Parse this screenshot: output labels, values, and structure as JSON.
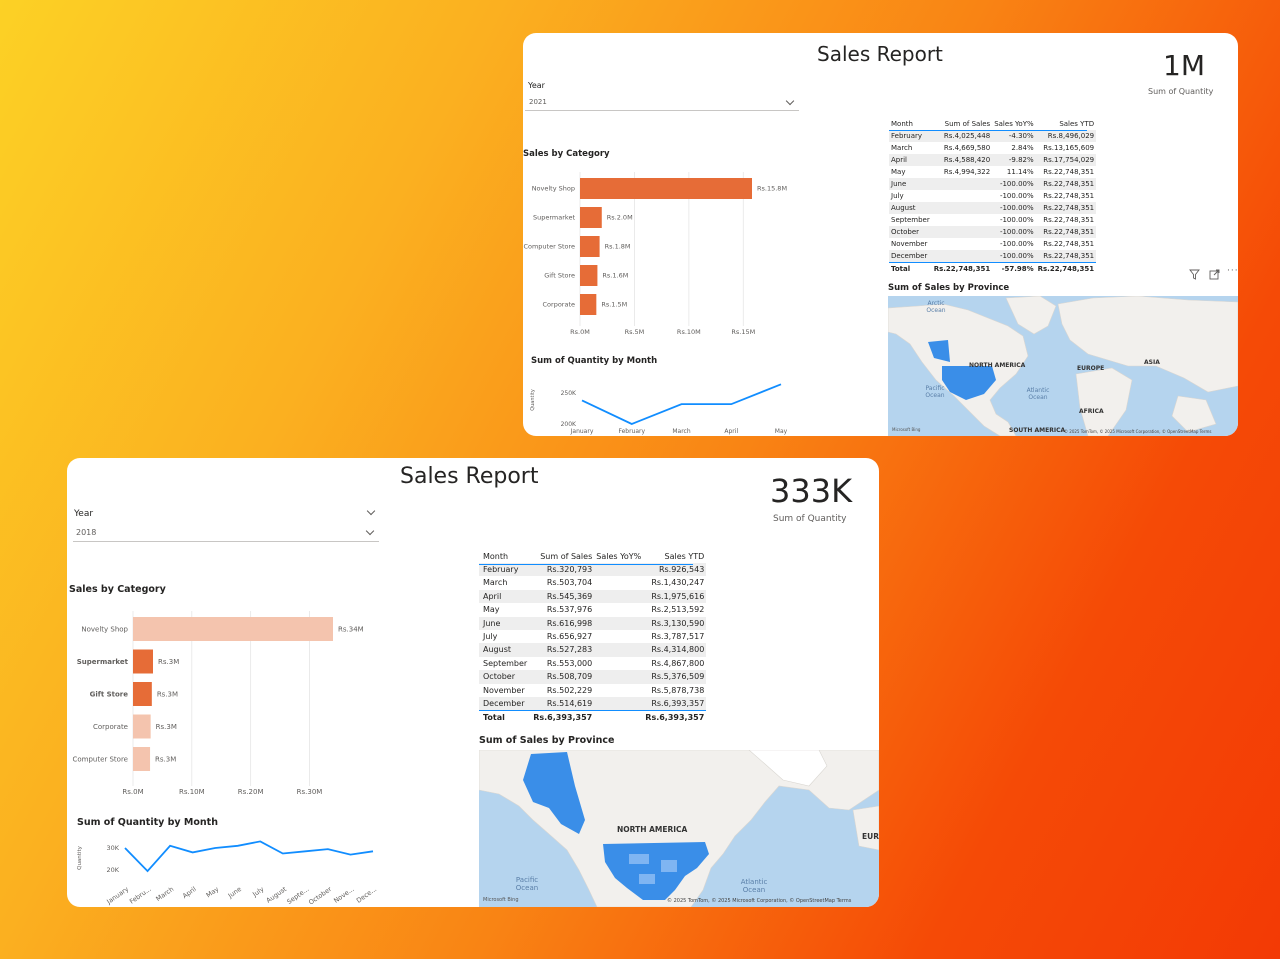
{
  "top_report": {
    "title": "Sales Report",
    "kpi": {
      "value": "1M",
      "label": "Sum of Quantity"
    },
    "year_slicer": {
      "label": "Year",
      "selected": "2021"
    },
    "sales_by_category": {
      "title": "Sales by Category",
      "categories": [
        "Novelty Shop",
        "Supermarket",
        "Computer Store",
        "Gift Store",
        "Corporate"
      ],
      "value_labels": [
        "Rs.15.8M",
        "Rs.2.0M",
        "Rs.1.8M",
        "Rs.1.6M",
        "Rs.1.5M"
      ],
      "x_ticks": [
        "Rs.0M",
        "Rs.5M",
        "Rs.10M",
        "Rs.15M"
      ]
    },
    "quantity_by_month": {
      "title": "Sum of Quantity by Month",
      "ylabel": "Quantity",
      "y_ticks": [
        "250K",
        "200K"
      ],
      "x_ticks": [
        "January",
        "February",
        "March",
        "April",
        "May"
      ]
    },
    "table": {
      "headers": [
        "Month",
        "Sum of Sales",
        "Sales YoY%",
        "Sales YTD"
      ],
      "rows": [
        [
          "February",
          "Rs.4,025,448",
          "-4.30%",
          "Rs.8,496,029"
        ],
        [
          "March",
          "Rs.4,669,580",
          "2.84%",
          "Rs.13,165,609"
        ],
        [
          "April",
          "Rs.4,588,420",
          "-9.82%",
          "Rs.17,754,029"
        ],
        [
          "May",
          "Rs.4,994,322",
          "11.14%",
          "Rs.22,748,351"
        ],
        [
          "June",
          "",
          "-100.00%",
          "Rs.22,748,351"
        ],
        [
          "July",
          "",
          "-100.00%",
          "Rs.22,748,351"
        ],
        [
          "August",
          "",
          "-100.00%",
          "Rs.22,748,351"
        ],
        [
          "September",
          "",
          "-100.00%",
          "Rs.22,748,351"
        ],
        [
          "October",
          "",
          "-100.00%",
          "Rs.22,748,351"
        ],
        [
          "November",
          "",
          "-100.00%",
          "Rs.22,748,351"
        ],
        [
          "December",
          "",
          "-100.00%",
          "Rs.22,748,351"
        ]
      ],
      "total": [
        "Total",
        "Rs.22,748,351",
        "-57.98%",
        "Rs.22,748,351"
      ]
    },
    "map": {
      "title": "Sum of Sales by Province",
      "labels": {
        "arctic": "Arctic Ocean",
        "north_america": "NORTH AMERICA",
        "europe": "EUROPE",
        "asia": "ASIA",
        "pacific": "Pacific Ocean",
        "atlantic": "Atlantic Ocean",
        "africa": "AFRICA",
        "south_america": "SOUTH AMERICA"
      },
      "attribution": "© 2025 TomTom, © 2025 Microsoft Corporation, © OpenStreetMap  Terms",
      "bing": "Microsoft Bing"
    }
  },
  "bottom_report": {
    "title": "Sales Report",
    "kpi": {
      "value": "333K",
      "label": "Sum of Quantity"
    },
    "year_slicer": {
      "label": "Year",
      "selected": "2018"
    },
    "sales_by_category": {
      "title": "Sales by Category",
      "categories": [
        "Novelty Shop",
        "Supermarket",
        "Gift Store",
        "Corporate",
        "Computer Store"
      ],
      "value_labels": [
        "Rs.34M",
        "Rs.3M",
        "Rs.3M",
        "Rs.3M",
        "Rs.3M"
      ],
      "x_ticks": [
        "Rs.0M",
        "Rs.10M",
        "Rs.20M",
        "Rs.30M"
      ]
    },
    "quantity_by_month": {
      "title": "Sum of Quantity by Month",
      "ylabel": "Quantity",
      "y_ticks": [
        "30K",
        "20K"
      ],
      "x_ticks": [
        "January",
        "Febru...",
        "March",
        "April",
        "May",
        "June",
        "July",
        "August",
        "Septe...",
        "October",
        "Nove...",
        "Dece..."
      ]
    },
    "table": {
      "headers": [
        "Month",
        "Sum of Sales",
        "Sales YoY%",
        "Sales YTD"
      ],
      "rows": [
        [
          "February",
          "Rs.320,793",
          "",
          "Rs.926,543"
        ],
        [
          "March",
          "Rs.503,704",
          "",
          "Rs.1,430,247"
        ],
        [
          "April",
          "Rs.545,369",
          "",
          "Rs.1,975,616"
        ],
        [
          "May",
          "Rs.537,976",
          "",
          "Rs.2,513,592"
        ],
        [
          "June",
          "Rs.616,998",
          "",
          "Rs.3,130,590"
        ],
        [
          "July",
          "Rs.656,927",
          "",
          "Rs.3,787,517"
        ],
        [
          "August",
          "Rs.527,283",
          "",
          "Rs.4,314,800"
        ],
        [
          "September",
          "Rs.553,000",
          "",
          "Rs.4,867,800"
        ],
        [
          "October",
          "Rs.508,709",
          "",
          "Rs.5,376,509"
        ],
        [
          "November",
          "Rs.502,229",
          "",
          "Rs.5,878,738"
        ],
        [
          "December",
          "Rs.514,619",
          "",
          "Rs.6,393,357"
        ]
      ],
      "total": [
        "Total",
        "Rs.6,393,357",
        "",
        "Rs.6,393,357"
      ]
    },
    "map": {
      "title": "Sum of Sales by Province",
      "labels": {
        "north_america": "NORTH AMERICA",
        "europe": "EUR",
        "pacific": "Pacific Ocean",
        "atlantic": "Atlantic Ocean"
      },
      "attribution": "© 2025 TomTom, © 2025 Microsoft Corporation, © OpenStreetMap  Terms",
      "bing": "Microsoft Bing"
    }
  },
  "chart_data": [
    {
      "type": "bar",
      "title": "Sales by Category",
      "orientation": "horizontal",
      "categories": [
        "Novelty Shop",
        "Supermarket",
        "Computer Store",
        "Gift Store",
        "Corporate"
      ],
      "values": [
        15.8,
        2.0,
        1.8,
        1.6,
        1.5
      ],
      "unit": "Rs. millions",
      "xlim": [
        0,
        15.8
      ],
      "color": "#e66c37"
    },
    {
      "type": "line",
      "title": "Sum of Quantity by Month",
      "ylabel": "Quantity",
      "x": [
        "January",
        "February",
        "March",
        "April",
        "May"
      ],
      "values": [
        238000,
        200000,
        232000,
        232000,
        264000
      ],
      "ylim": [
        200000,
        250000
      ],
      "color": "#118dff"
    },
    {
      "type": "bar",
      "title": "Sales by Category",
      "orientation": "horizontal",
      "categories": [
        "Novelty Shop",
        "Supermarket",
        "Gift Store",
        "Corporate",
        "Computer Store"
      ],
      "values": [
        34,
        3.4,
        3.2,
        3.0,
        2.9
      ],
      "highlighted": [
        false,
        true,
        true,
        false,
        false
      ],
      "unit": "Rs. millions",
      "xlim": [
        0,
        34
      ],
      "color": "#e66c37",
      "faded_color": "#f4c4ae"
    },
    {
      "type": "line",
      "title": "Sum of Quantity by Month",
      "ylabel": "Quantity",
      "x": [
        "January",
        "Febru...",
        "March",
        "April",
        "May",
        "June",
        "July",
        "August",
        "Septe...",
        "October",
        "Nove...",
        "Dece..."
      ],
      "values": [
        30000,
        19500,
        31000,
        28000,
        30000,
        31000,
        33000,
        27500,
        28500,
        29500,
        27000,
        28500
      ],
      "ylim": [
        20000,
        30000
      ],
      "color": "#118dff"
    }
  ]
}
